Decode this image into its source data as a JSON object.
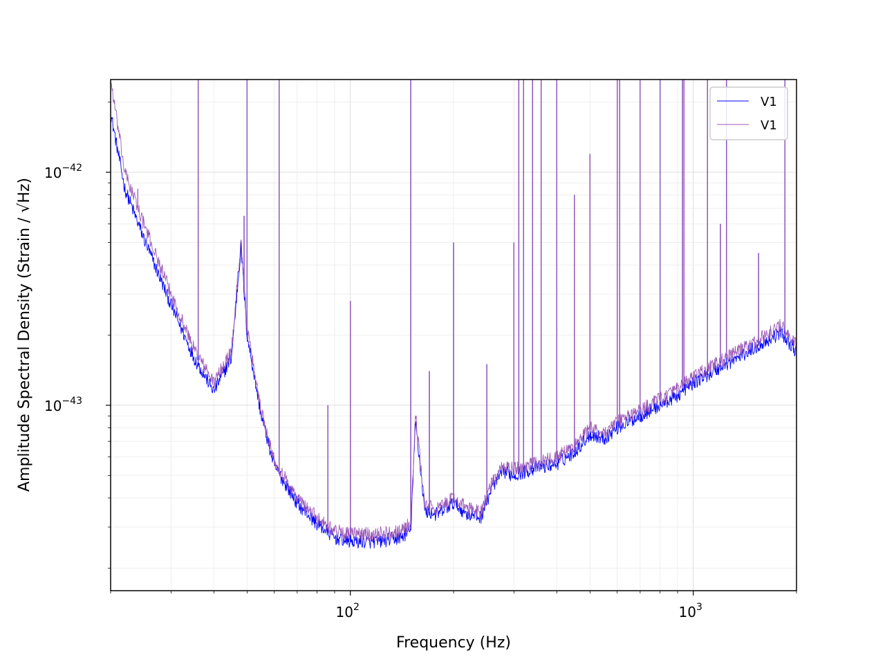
{
  "chart_data": {
    "type": "line",
    "title": "",
    "xlabel": "Frequency (Hz)",
    "ylabel": "Amplitude Spectral Density (Strain / √Hz)",
    "xscale": "log",
    "yscale": "log",
    "xlim": [
      20,
      2000
    ],
    "ylim": [
      1.6e-44,
      2.5e-42
    ],
    "grid": true,
    "legend_placement": "top-right",
    "x_tick_labels": [
      {
        "value": 100,
        "base": "10",
        "exp": "2"
      },
      {
        "value": 1000,
        "base": "10",
        "exp": "3"
      }
    ],
    "y_tick_labels": [
      {
        "value": 1e-43,
        "base": "10",
        "exp": "−43"
      },
      {
        "value": 1e-42,
        "base": "10",
        "exp": "−42"
      }
    ],
    "series": [
      {
        "name": "V1",
        "color": "#0000ff",
        "baseline": [
          [
            20,
            1.8e-42
          ],
          [
            22,
            8.5e-43
          ],
          [
            25,
            5.2e-43
          ],
          [
            30,
            2.7e-43
          ],
          [
            35,
            1.6e-43
          ],
          [
            40,
            1.15e-43
          ],
          [
            45,
            1.6e-43
          ],
          [
            48,
            4.8e-43
          ],
          [
            50,
            2e-43
          ],
          [
            55,
            9e-44
          ],
          [
            60,
            5.5e-44
          ],
          [
            70,
            3.8e-44
          ],
          [
            80,
            3.1e-44
          ],
          [
            90,
            2.7e-44
          ],
          [
            100,
            2.6e-44
          ],
          [
            120,
            2.6e-44
          ],
          [
            140,
            2.7e-44
          ],
          [
            150,
            2.9e-44
          ],
          [
            155,
            8.5e-44
          ],
          [
            165,
            3.5e-44
          ],
          [
            180,
            3.4e-44
          ],
          [
            200,
            3.8e-44
          ],
          [
            220,
            3.4e-44
          ],
          [
            240,
            3.3e-44
          ],
          [
            260,
            4.5e-44
          ],
          [
            280,
            5.2e-44
          ],
          [
            300,
            5e-44
          ],
          [
            350,
            5.4e-44
          ],
          [
            400,
            5.6e-44
          ],
          [
            450,
            6.3e-44
          ],
          [
            500,
            7.5e-44
          ],
          [
            550,
            7.2e-44
          ],
          [
            600,
            8e-44
          ],
          [
            700,
            9e-44
          ],
          [
            800,
            1e-43
          ],
          [
            900,
            1.1e-43
          ],
          [
            1000,
            1.25e-43
          ],
          [
            1200,
            1.45e-43
          ],
          [
            1500,
            1.75e-43
          ],
          [
            1800,
            2.05e-43
          ],
          [
            2000,
            1.7e-43
          ]
        ],
        "peaks": [
          [
            36,
            2.5e-42
          ],
          [
            49,
            6.5e-43
          ],
          [
            50,
            2.5e-42
          ],
          [
            62,
            2.5e-42
          ],
          [
            86,
            1e-43
          ],
          [
            100,
            2.8e-43
          ],
          [
            150,
            2.5e-42
          ],
          [
            170,
            1.4e-43
          ],
          [
            200,
            5e-43
          ],
          [
            250,
            1.5e-43
          ],
          [
            300,
            5e-43
          ],
          [
            310,
            2.5e-42
          ],
          [
            320,
            2.5e-42
          ],
          [
            340,
            2.5e-42
          ],
          [
            360,
            2.5e-42
          ],
          [
            400,
            2.5e-42
          ],
          [
            450,
            8e-43
          ],
          [
            500,
            1.2e-42
          ],
          [
            600,
            2.5e-42
          ],
          [
            610,
            2.5e-42
          ],
          [
            700,
            2.5e-42
          ],
          [
            800,
            2.5e-42
          ],
          [
            930,
            2.5e-42
          ],
          [
            940,
            2.5e-42
          ],
          [
            1100,
            2.5e-42
          ],
          [
            1200,
            6e-43
          ],
          [
            1250,
            2.5e-42
          ],
          [
            1550,
            4.5e-43
          ],
          [
            1850,
            2.5e-42
          ]
        ]
      },
      {
        "name": "V1",
        "color": "#9b59b6",
        "baseline": [
          [
            20,
            2.5e-42
          ],
          [
            22,
            1e-42
          ],
          [
            25,
            6e-43
          ],
          [
            30,
            3e-43
          ],
          [
            35,
            1.75e-43
          ],
          [
            40,
            1.25e-43
          ],
          [
            45,
            1.7e-43
          ],
          [
            48,
            5.2e-43
          ],
          [
            50,
            2.1e-43
          ],
          [
            55,
            9.5e-44
          ],
          [
            60,
            5.8e-44
          ],
          [
            70,
            4e-44
          ],
          [
            80,
            3.3e-44
          ],
          [
            90,
            2.9e-44
          ],
          [
            100,
            2.8e-44
          ],
          [
            120,
            2.8e-44
          ],
          [
            140,
            2.9e-44
          ],
          [
            150,
            3.1e-44
          ],
          [
            155,
            9e-44
          ],
          [
            165,
            3.7e-44
          ],
          [
            180,
            3.6e-44
          ],
          [
            200,
            4e-44
          ],
          [
            220,
            3.6e-44
          ],
          [
            240,
            3.5e-44
          ],
          [
            260,
            4.7e-44
          ],
          [
            280,
            5.5e-44
          ],
          [
            300,
            5.3e-44
          ],
          [
            350,
            5.7e-44
          ],
          [
            400,
            6e-44
          ],
          [
            450,
            6.7e-44
          ],
          [
            500,
            8e-44
          ],
          [
            550,
            7.6e-44
          ],
          [
            600,
            8.5e-44
          ],
          [
            700,
            9.5e-44
          ],
          [
            800,
            1.07e-43
          ],
          [
            900,
            1.17e-43
          ],
          [
            1000,
            1.32e-43
          ],
          [
            1200,
            1.55e-43
          ],
          [
            1500,
            1.85e-43
          ],
          [
            1800,
            2.2e-43
          ],
          [
            2000,
            1.8e-43
          ]
        ],
        "peaks": [
          [
            24,
            8.5e-43
          ],
          [
            36,
            2.5e-42
          ],
          [
            49,
            6.5e-43
          ],
          [
            50,
            2.5e-42
          ],
          [
            62,
            2.5e-42
          ],
          [
            86,
            1e-43
          ],
          [
            100,
            2.8e-43
          ],
          [
            150,
            2.5e-42
          ],
          [
            170,
            1.4e-43
          ],
          [
            200,
            5e-43
          ],
          [
            250,
            1.5e-43
          ],
          [
            300,
            5e-43
          ],
          [
            310,
            2.5e-42
          ],
          [
            320,
            2.5e-42
          ],
          [
            340,
            2.5e-42
          ],
          [
            360,
            2.5e-42
          ],
          [
            400,
            2.5e-42
          ],
          [
            450,
            8e-43
          ],
          [
            500,
            1.2e-42
          ],
          [
            600,
            2.5e-42
          ],
          [
            610,
            2.5e-42
          ],
          [
            700,
            2.5e-42
          ],
          [
            800,
            2.5e-42
          ],
          [
            930,
            2.5e-42
          ],
          [
            940,
            2.5e-42
          ],
          [
            1100,
            2.5e-42
          ],
          [
            1200,
            6e-43
          ],
          [
            1250,
            2.5e-42
          ],
          [
            1550,
            4.5e-43
          ],
          [
            1850,
            2.5e-42
          ]
        ]
      }
    ]
  }
}
